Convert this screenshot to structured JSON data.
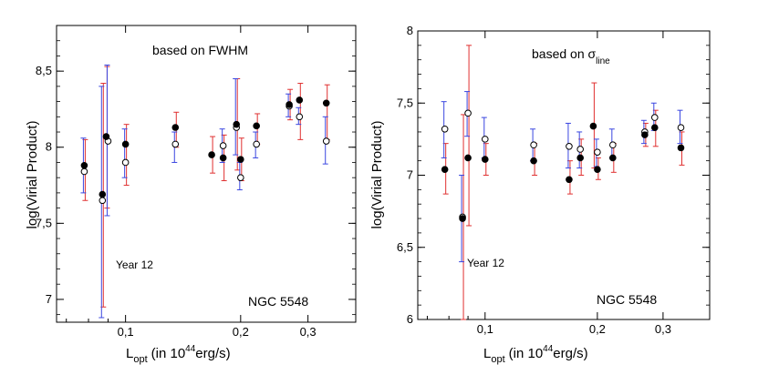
{
  "colors": {
    "red": "#e03030",
    "blue": "#3a46e0",
    "black": "#000000"
  },
  "chart_data": [
    {
      "type": "scatter",
      "title": "based on FWHM",
      "title_sub": "",
      "ylabel": "log(Virial Product)",
      "xlabel_main": "L",
      "xlabel_sub": "opt",
      "xlabel_paren": "(in 10",
      "xlabel_sup": "44",
      "xlabel_tail": "erg/s)",
      "x_scale": "log",
      "xlim": [
        0.066,
        0.4
      ],
      "ylim": [
        6.85,
        8.8
      ],
      "xticks": [
        {
          "v": 0.1,
          "label": "0,1"
        },
        {
          "v": 0.2,
          "label": "0,2"
        },
        {
          "v": 0.3,
          "label": "0,3"
        }
      ],
      "yticks": [
        {
          "v": 7,
          "label": "7"
        },
        {
          "v": 7.5,
          "label": "7,5"
        },
        {
          "v": 8,
          "label": "8"
        },
        {
          "v": 8.5,
          "label": "8,5"
        }
      ],
      "annotations": {
        "year": "Year 12",
        "object": "NGC 5548"
      },
      "filled": [
        {
          "x": 0.078,
          "y": 7.88,
          "lo": 7.65,
          "hi": 8.05
        },
        {
          "x": 0.087,
          "y": 7.69,
          "lo": 6.95,
          "hi": 8.42
        },
        {
          "x": 0.089,
          "y": 8.07,
          "lo": 7.6,
          "hi": 8.53
        },
        {
          "x": 0.1,
          "y": 8.02,
          "lo": 7.75,
          "hi": 8.15
        },
        {
          "x": 0.135,
          "y": 8.13,
          "lo": 8.0,
          "hi": 8.23
        },
        {
          "x": 0.168,
          "y": 7.95,
          "lo": 7.83,
          "hi": 8.07
        },
        {
          "x": 0.18,
          "y": 7.93,
          "lo": 7.78,
          "hi": 8.08
        },
        {
          "x": 0.195,
          "y": 8.15,
          "lo": 7.85,
          "hi": 8.45
        },
        {
          "x": 0.2,
          "y": 7.92,
          "lo": 7.78,
          "hi": 8.06
        },
        {
          "x": 0.22,
          "y": 8.14,
          "lo": 8.02,
          "hi": 8.22
        },
        {
          "x": 0.268,
          "y": 8.28,
          "lo": 8.18,
          "hi": 8.38
        },
        {
          "x": 0.285,
          "y": 8.31,
          "lo": 8.05,
          "hi": 8.42
        },
        {
          "x": 0.335,
          "y": 8.29,
          "lo": 8.05,
          "hi": 8.41
        }
      ],
      "open": [
        {
          "x": 0.078,
          "y": 7.84,
          "lo": 7.7,
          "hi": 8.06
        },
        {
          "x": 0.087,
          "y": 7.65,
          "lo": 6.88,
          "hi": 8.4
        },
        {
          "x": 0.09,
          "y": 8.04,
          "lo": 7.55,
          "hi": 8.54
        },
        {
          "x": 0.1,
          "y": 7.9,
          "lo": 7.8,
          "hi": 8.12
        },
        {
          "x": 0.135,
          "y": 8.02,
          "lo": 7.9,
          "hi": 8.1
        },
        {
          "x": 0.18,
          "y": 8.01,
          "lo": 7.9,
          "hi": 8.12
        },
        {
          "x": 0.195,
          "y": 8.13,
          "lo": 7.95,
          "hi": 8.45
        },
        {
          "x": 0.2,
          "y": 7.8,
          "lo": 7.72,
          "hi": 7.9
        },
        {
          "x": 0.22,
          "y": 8.02,
          "lo": 7.93,
          "hi": 8.1
        },
        {
          "x": 0.268,
          "y": 8.27,
          "lo": 8.2,
          "hi": 8.35
        },
        {
          "x": 0.285,
          "y": 8.2,
          "lo": 8.15,
          "hi": 8.26
        },
        {
          "x": 0.335,
          "y": 8.04,
          "lo": 7.89,
          "hi": 8.2
        }
      ]
    },
    {
      "type": "scatter",
      "title": "based on σ",
      "title_sub": "line",
      "ylabel": "log(Virial Product)",
      "xlabel_main": "L",
      "xlabel_sub": "opt",
      "xlabel_paren": "(in 10",
      "xlabel_sup": "44",
      "xlabel_tail": "erg/s)",
      "x_scale": "log",
      "xlim": [
        0.066,
        0.4
      ],
      "ylim": [
        6,
        8
      ],
      "xticks": [
        {
          "v": 0.1,
          "label": "0,1"
        },
        {
          "v": 0.2,
          "label": "0,2"
        },
        {
          "v": 0.3,
          "label": "0,3"
        }
      ],
      "yticks": [
        {
          "v": 6,
          "label": "6"
        },
        {
          "v": 6.5,
          "label": "6,5"
        },
        {
          "v": 7,
          "label": "7"
        },
        {
          "v": 7.5,
          "label": "7,5"
        },
        {
          "v": 8,
          "label": "8"
        }
      ],
      "annotations": {
        "year": "Year 12",
        "object": "NGC 5548"
      },
      "filled": [
        {
          "x": 0.078,
          "y": 7.04,
          "lo": 6.87,
          "hi": 7.22
        },
        {
          "x": 0.087,
          "y": 6.7,
          "lo": 6.0,
          "hi": 7.42
        },
        {
          "x": 0.09,
          "y": 7.12,
          "lo": 6.65,
          "hi": 7.9
        },
        {
          "x": 0.1,
          "y": 7.11,
          "lo": 7.0,
          "hi": 7.22
        },
        {
          "x": 0.135,
          "y": 7.1,
          "lo": 7.0,
          "hi": 7.22
        },
        {
          "x": 0.168,
          "y": 6.97,
          "lo": 6.87,
          "hi": 7.1
        },
        {
          "x": 0.18,
          "y": 7.12,
          "lo": 7.0,
          "hi": 7.25
        },
        {
          "x": 0.195,
          "y": 7.34,
          "lo": 7.05,
          "hi": 7.64
        },
        {
          "x": 0.2,
          "y": 7.04,
          "lo": 6.97,
          "hi": 7.12
        },
        {
          "x": 0.22,
          "y": 7.12,
          "lo": 7.02,
          "hi": 7.22
        },
        {
          "x": 0.268,
          "y": 7.28,
          "lo": 7.2,
          "hi": 7.36
        },
        {
          "x": 0.285,
          "y": 7.33,
          "lo": 7.2,
          "hi": 7.45
        },
        {
          "x": 0.335,
          "y": 7.19,
          "lo": 7.07,
          "hi": 7.3
        }
      ],
      "open": [
        {
          "x": 0.078,
          "y": 7.32,
          "lo": 7.12,
          "hi": 7.51
        },
        {
          "x": 0.087,
          "y": 6.71,
          "lo": 6.4,
          "hi": 7.0
        },
        {
          "x": 0.09,
          "y": 7.43,
          "lo": 7.27,
          "hi": 7.58
        },
        {
          "x": 0.1,
          "y": 7.25,
          "lo": 7.12,
          "hi": 7.4
        },
        {
          "x": 0.135,
          "y": 7.21,
          "lo": 7.1,
          "hi": 7.32
        },
        {
          "x": 0.168,
          "y": 7.2,
          "lo": 7.05,
          "hi": 7.36
        },
        {
          "x": 0.18,
          "y": 7.18,
          "lo": 7.05,
          "hi": 7.3
        },
        {
          "x": 0.2,
          "y": 7.16,
          "lo": 7.06,
          "hi": 7.25
        },
        {
          "x": 0.22,
          "y": 7.21,
          "lo": 7.12,
          "hi": 7.32
        },
        {
          "x": 0.268,
          "y": 7.3,
          "lo": 7.22,
          "hi": 7.38
        },
        {
          "x": 0.285,
          "y": 7.4,
          "lo": 7.31,
          "hi": 7.5
        },
        {
          "x": 0.335,
          "y": 7.33,
          "lo": 7.22,
          "hi": 7.45
        }
      ]
    }
  ]
}
